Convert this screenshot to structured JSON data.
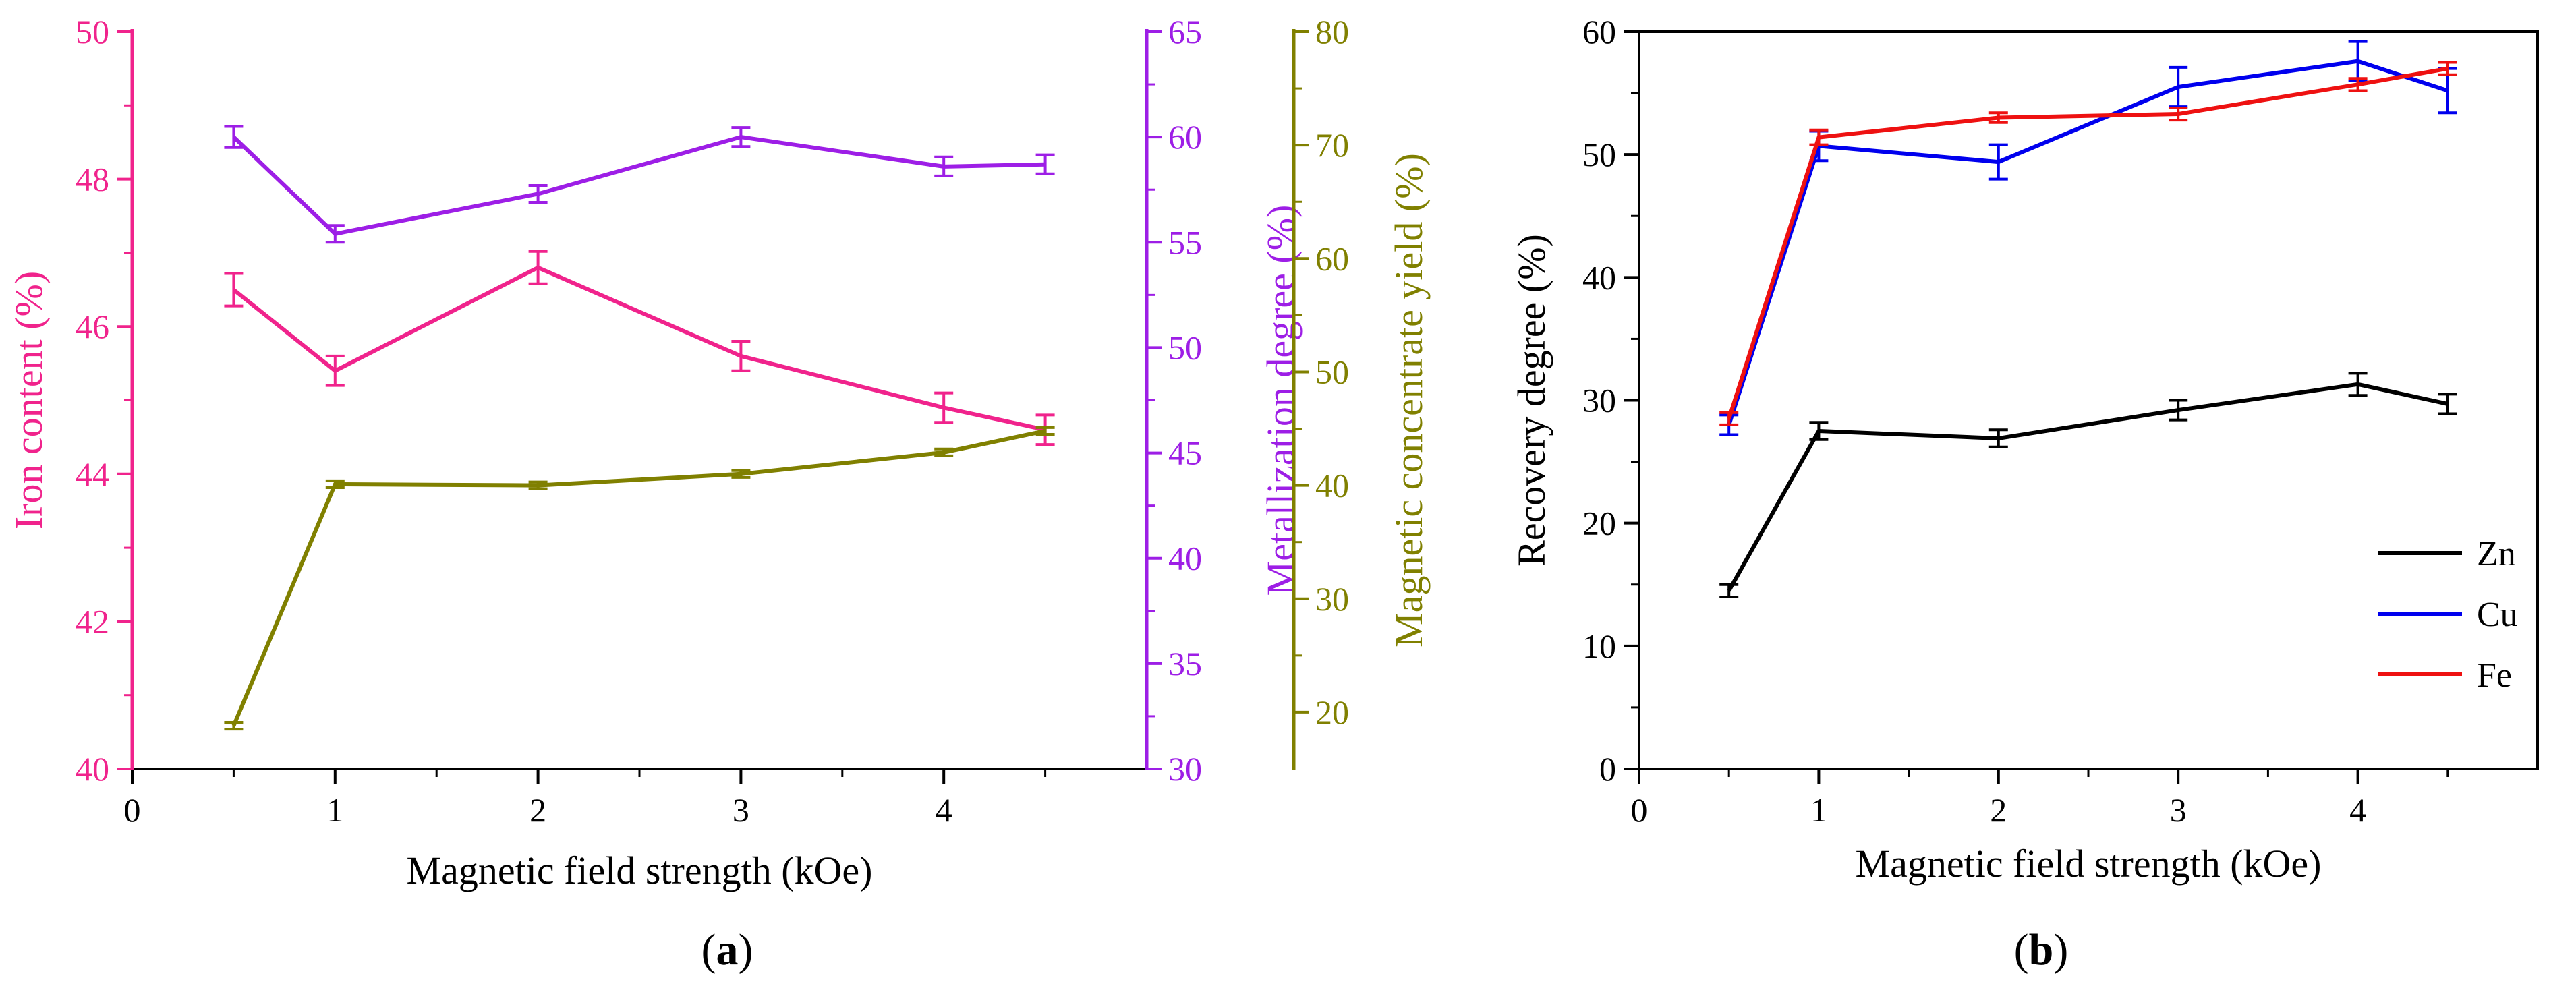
{
  "colors": {
    "iron": "#f0238c",
    "metallization": "#9d1ee6",
    "yield": "#808000",
    "zn": "#000000",
    "cu": "#0000ee",
    "fe": "#ee1111",
    "axis": "#000000"
  },
  "chart_data": [
    {
      "id": "a",
      "type": "line",
      "panel_label": "a",
      "xlabel": "Magnetic field strength (kOe)",
      "xlim": [
        0,
        5
      ],
      "xticks": [
        0,
        1,
        2,
        3,
        4
      ],
      "x": [
        0.5,
        1,
        2,
        3,
        4,
        4.5
      ],
      "axes": [
        {
          "key": "iron",
          "label": "Iron content (%)",
          "ylim": [
            40,
            50
          ],
          "ticks": [
            40,
            42,
            44,
            46,
            48,
            50
          ]
        },
        {
          "key": "metallization",
          "label": "Metallization degree (%)",
          "ylim": [
            30,
            65
          ],
          "ticks": [
            30,
            35,
            40,
            45,
            50,
            55,
            60,
            65
          ]
        },
        {
          "key": "yield",
          "label": "Magnetic concentrate yield (%)",
          "ylim": [
            15,
            80
          ],
          "ticks": [
            20,
            30,
            40,
            50,
            60,
            70,
            80
          ]
        }
      ],
      "series": [
        {
          "name": "Iron content",
          "axis": "iron",
          "values": [
            46.5,
            45.4,
            46.8,
            45.6,
            44.9,
            44.6
          ],
          "errors": [
            0.22,
            0.2,
            0.22,
            0.2,
            0.2,
            0.2
          ]
        },
        {
          "name": "Metallization degree",
          "axis": "metallization",
          "values": [
            60.0,
            55.4,
            57.3,
            60.0,
            58.6,
            58.7
          ],
          "errors": [
            0.5,
            0.4,
            0.4,
            0.45,
            0.45,
            0.45
          ]
        },
        {
          "name": "Magnetic concentrate yield",
          "axis": "yield",
          "values": [
            18.8,
            40.1,
            40.0,
            41.0,
            42.9,
            44.8
          ],
          "errors": [
            0.3,
            0.3,
            0.3,
            0.3,
            0.3,
            0.3
          ]
        }
      ]
    },
    {
      "id": "b",
      "type": "line",
      "panel_label": "b",
      "xlabel": "Magnetic field strength (kOe)",
      "ylabel": "Recovery degree (%)",
      "xlim": [
        0,
        5
      ],
      "xticks": [
        0,
        1,
        2,
        3,
        4
      ],
      "ylim": [
        0,
        60
      ],
      "yticks": [
        0,
        10,
        20,
        30,
        40,
        50,
        60
      ],
      "x": [
        0.5,
        1,
        2,
        3,
        4,
        4.5
      ],
      "legend": "right",
      "series": [
        {
          "name": "Zn",
          "color_key": "zn",
          "values": [
            14.5,
            27.5,
            26.9,
            29.2,
            31.3,
            29.7
          ],
          "errors": [
            0.5,
            0.7,
            0.7,
            0.8,
            0.9,
            0.8
          ]
        },
        {
          "name": "Cu",
          "color_key": "cu",
          "values": [
            28.0,
            50.7,
            49.4,
            55.5,
            57.6,
            55.2
          ],
          "errors": [
            0.8,
            1.2,
            1.4,
            1.6,
            1.6,
            1.8
          ]
        },
        {
          "name": "Fe",
          "color_key": "fe",
          "values": [
            28.5,
            51.4,
            53.0,
            53.3,
            55.7,
            57.0
          ],
          "errors": [
            0.5,
            0.6,
            0.4,
            0.5,
            0.5,
            0.5
          ]
        }
      ]
    }
  ]
}
